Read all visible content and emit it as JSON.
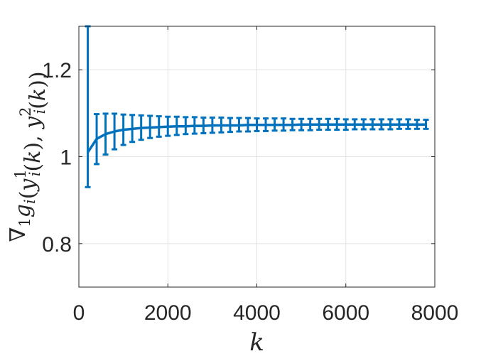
{
  "chart_data": {
    "type": "line",
    "title": "",
    "xlabel": "k",
    "ylabel_parts": [
      {
        "t": "∇",
        "style": "normal"
      },
      {
        "t": "1",
        "style": "sub"
      },
      {
        "t": "g",
        "style": "italic"
      },
      {
        "t": "i",
        "style": "sub-italic"
      },
      {
        "t": "(",
        "style": "normal"
      },
      {
        "t": "y",
        "style": "italic"
      },
      {
        "t": "1",
        "style": "sup"
      },
      {
        "t": "i",
        "style": "sub-italic-back"
      },
      {
        "t": "(",
        "style": "normal"
      },
      {
        "t": "k",
        "style": "italic"
      },
      {
        "t": "), ",
        "style": "normal"
      },
      {
        "t": "y",
        "style": "italic"
      },
      {
        "t": "2",
        "style": "sup"
      },
      {
        "t": "i",
        "style": "sub-italic-back"
      },
      {
        "t": "(",
        "style": "normal"
      },
      {
        "t": "k",
        "style": "italic"
      },
      {
        "t": "))",
        "style": "normal"
      }
    ],
    "xlim": [
      0,
      8000
    ],
    "ylim": [
      0.7,
      1.3
    ],
    "xticks": [
      0,
      2000,
      4000,
      6000,
      8000
    ],
    "xtick_labels": [
      "0",
      "2000",
      "4000",
      "6000",
      "8000"
    ],
    "yticks": [
      0.8,
      1.0,
      1.2
    ],
    "ytick_labels": [
      "0.8",
      "1",
      "1.2"
    ],
    "grid": true,
    "color": "#0072BD",
    "series": [
      {
        "x": [
          200,
          400,
          600,
          800,
          1000,
          1200,
          1400,
          1600,
          1800,
          2000,
          2200,
          2400,
          2600,
          2800,
          3000,
          3200,
          3400,
          3600,
          3800,
          4000,
          4200,
          4400,
          4600,
          4800,
          5000,
          5200,
          5400,
          5600,
          5800,
          6000,
          6200,
          6400,
          6600,
          6800,
          7000,
          7200,
          7400,
          7600,
          7800
        ],
        "y": [
          1.01,
          1.041,
          1.052,
          1.058,
          1.062,
          1.064,
          1.066,
          1.067,
          1.068,
          1.069,
          1.07,
          1.07,
          1.071,
          1.071,
          1.072,
          1.072,
          1.072,
          1.072,
          1.073,
          1.073,
          1.073,
          1.073,
          1.073,
          1.073,
          1.074,
          1.074,
          1.074,
          1.074,
          1.074,
          1.074,
          1.074,
          1.074,
          1.074,
          1.074,
          1.074,
          1.074,
          1.074,
          1.074,
          1.074
        ],
        "err_low": [
          0.93,
          0.983,
          1.005,
          1.017,
          1.027,
          1.034,
          1.039,
          1.043,
          1.046,
          1.048,
          1.05,
          1.052,
          1.053,
          1.054,
          1.055,
          1.056,
          1.057,
          1.058,
          1.058,
          1.059,
          1.059,
          1.06,
          1.06,
          1.061,
          1.061,
          1.061,
          1.062,
          1.062,
          1.062,
          1.062,
          1.063,
          1.063,
          1.063,
          1.063,
          1.063,
          1.064,
          1.064,
          1.064,
          1.064
        ],
        "err_high": [
          1.3,
          1.098,
          1.099,
          1.099,
          1.097,
          1.096,
          1.095,
          1.094,
          1.093,
          1.092,
          1.092,
          1.091,
          1.091,
          1.09,
          1.09,
          1.09,
          1.089,
          1.089,
          1.089,
          1.088,
          1.088,
          1.088,
          1.088,
          1.087,
          1.087,
          1.087,
          1.087,
          1.087,
          1.087,
          1.086,
          1.086,
          1.086,
          1.086,
          1.086,
          1.086,
          1.086,
          1.086,
          1.085,
          1.085
        ]
      }
    ]
  }
}
